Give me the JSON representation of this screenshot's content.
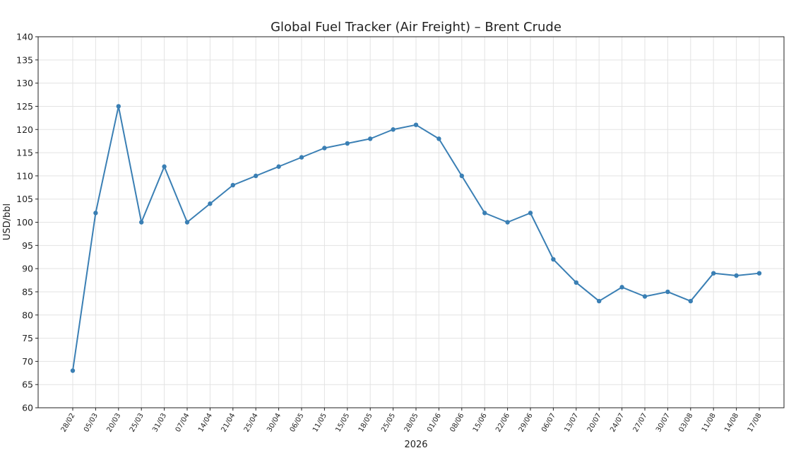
{
  "chart_data": {
    "type": "line",
    "title": "Global Fuel Tracker (Air Freight) – Brent Crude",
    "xlabel": "2026",
    "ylabel": "USD/bbl",
    "ylim": [
      60,
      140
    ],
    "yticks": [
      60,
      65,
      70,
      75,
      80,
      85,
      90,
      95,
      100,
      105,
      110,
      115,
      120,
      125,
      130,
      135,
      140
    ],
    "grid": true,
    "line_color": "#3a7fb4",
    "categories": [
      "28/02",
      "05/03",
      "20/03",
      "25/03",
      "31/03",
      "07/04",
      "14/04",
      "21/04",
      "25/04",
      "30/04",
      "06/05",
      "11/05",
      "15/05",
      "18/05",
      "25/05",
      "28/05",
      "01/06",
      "08/06",
      "15/06",
      "22/06",
      "29/06",
      "06/07",
      "13/07",
      "20/07",
      "24/07",
      "27/07",
      "30/07",
      "03/08",
      "11/08",
      "14/08",
      "17/08"
    ],
    "series": [
      {
        "values": [
          68,
          102,
          125,
          100,
          112,
          100,
          104,
          108,
          110,
          112,
          114,
          116,
          117,
          118,
          120,
          121,
          118,
          110,
          102,
          100,
          102,
          92,
          87,
          83,
          86,
          84,
          85,
          83,
          89,
          88.5,
          89
        ]
      }
    ]
  }
}
